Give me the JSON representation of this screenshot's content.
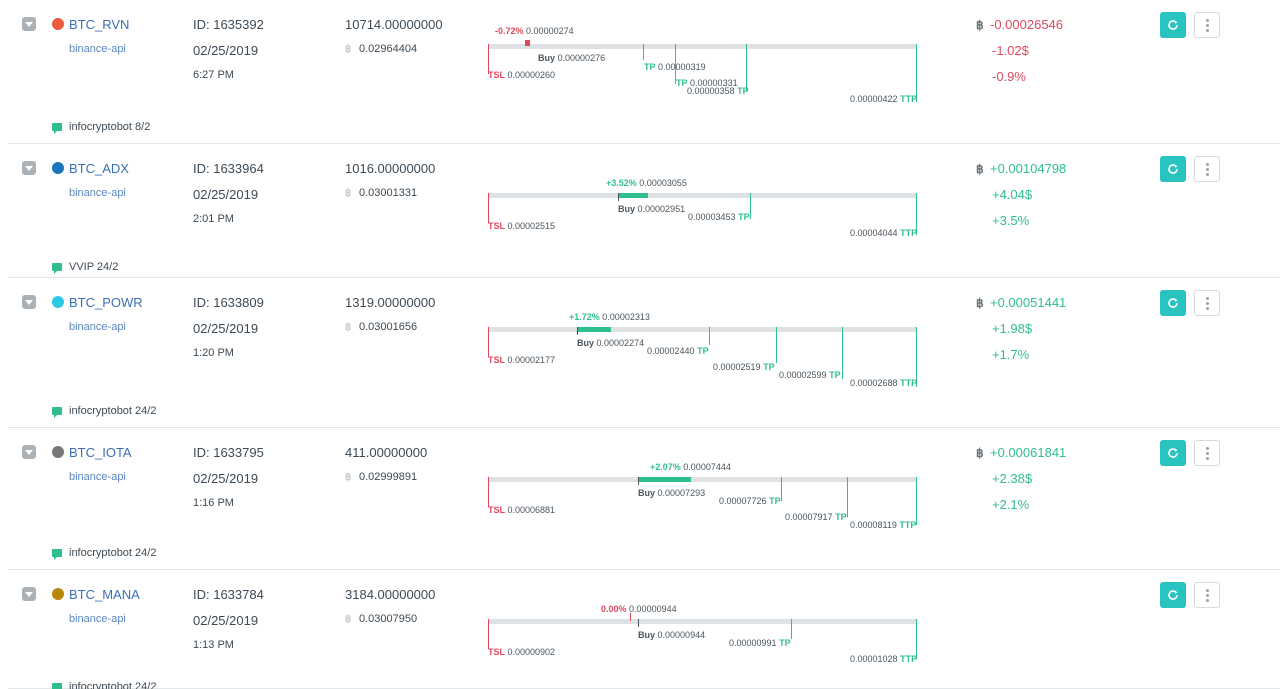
{
  "trades": [
    {
      "pair": "BTC_RVN",
      "icon": "ravencoin-icon",
      "exchange": "binance-api",
      "id": "ID: 1635392",
      "date": "02/25/2019",
      "time": "6:27 PM",
      "amount": "10714.00000000",
      "total": "0.02964404",
      "signal": "infocryptobot 8/2",
      "profit_btc": "-0.00026546",
      "profit_usd": "-1.02$",
      "profit_pct": "-0.9%",
      "change": "-0.72%",
      "current": "0.00000274",
      "buy_label": "Buy",
      "buy": "0.00000276",
      "tsl_label": "TSL",
      "tsl": "0.00000260",
      "tp_label": "TP",
      "ttp_label": "TTP",
      "tp": [
        "0.00000319",
        "0.00000331",
        "0.00000358"
      ],
      "ttp": "0.00000422"
    },
    {
      "pair": "BTC_ADX",
      "icon": "adex-icon",
      "exchange": "binance-api",
      "id": "ID: 1633964",
      "date": "02/25/2019",
      "time": "2:01 PM",
      "amount": "1016.00000000",
      "total": "0.03001331",
      "signal": "VVIP 24/2",
      "profit_btc": "+0.00104798",
      "profit_usd": "+4.04$",
      "profit_pct": "+3.5%",
      "change": "+3.52%",
      "current": "0.00003055",
      "buy_label": "Buy",
      "buy": "0.00002951",
      "tsl_label": "TSL",
      "tsl": "0.00002515",
      "tp_label": "TP",
      "ttp_label": "TTP",
      "tp": [
        "0.00003453"
      ],
      "ttp": "0.00004044"
    },
    {
      "pair": "BTC_POWR",
      "icon": "powerledger-icon",
      "exchange": "binance-api",
      "id": "ID: 1633809",
      "date": "02/25/2019",
      "time": "1:20 PM",
      "amount": "1319.00000000",
      "total": "0.03001656",
      "signal": "infocryptobot 24/2",
      "profit_btc": "+0.00051441",
      "profit_usd": "+1.98$",
      "profit_pct": "+1.7%",
      "change": "+1.72%",
      "current": "0.00002313",
      "buy_label": "Buy",
      "buy": "0.00002274",
      "tsl_label": "TSL",
      "tsl": "0.00002177",
      "tp_label": "TP",
      "ttp_label": "TTP",
      "tp": [
        "0.00002440",
        "0.00002519",
        "0.00002599"
      ],
      "ttp": "0.00002688"
    },
    {
      "pair": "BTC_IOTA",
      "icon": "iota-icon",
      "exchange": "binance-api",
      "id": "ID: 1633795",
      "date": "02/25/2019",
      "time": "1:16 PM",
      "amount": "411.00000000",
      "total": "0.02999891",
      "signal": "infocryptobot 24/2",
      "profit_btc": "+0.00061841",
      "profit_usd": "+2.38$",
      "profit_pct": "+2.1%",
      "change": "+2.07%",
      "current": "0.00007444",
      "buy_label": "Buy",
      "buy": "0.00007293",
      "tsl_label": "TSL",
      "tsl": "0.00006881",
      "tp_label": "TP",
      "ttp_label": "TTP",
      "tp": [
        "0.00007726",
        "0.00007917"
      ],
      "ttp": "0.00008119"
    },
    {
      "pair": "BTC_MANA",
      "icon": "decentraland-icon",
      "exchange": "binance-api",
      "id": "ID: 1633784",
      "date": "02/25/2019",
      "time": "1:13 PM",
      "amount": "3184.00000000",
      "total": "0.03007950",
      "signal": "infocryptobot 24/2",
      "profit_btc": "",
      "profit_usd": "",
      "profit_pct": "",
      "change": "0.00%",
      "current": "0.00000944",
      "buy_label": "Buy",
      "buy": "0.00000944",
      "tsl_label": "TSL",
      "tsl": "0.00000902",
      "tp_label": "TP",
      "ttp_label": "TTP",
      "tp": [
        "0.00000991"
      ],
      "ttp": "0.00001028"
    }
  ],
  "colors": {
    "positive": "#2fbf8e",
    "negative": "#e0485c",
    "accent": "#29c4c0",
    "link": "#3b6fb6"
  }
}
